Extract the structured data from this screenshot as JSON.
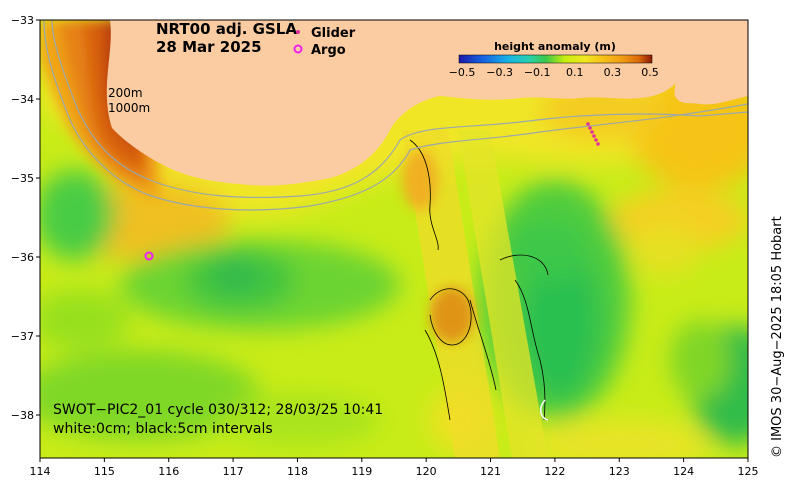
{
  "title_line1": "NRT00 adj. GSLA",
  "title_line2": "28 Mar 2025",
  "legend": {
    "glider": "Glider",
    "argo": "Argo"
  },
  "colorbar": {
    "title": "height anomaly (m)",
    "ticks": [
      "−0.5",
      "−0.3",
      "−0.1",
      "0.1",
      "0.3",
      "0.5"
    ],
    "colors": [
      "#1a1aa8",
      "#1560e0",
      "#18b0e8",
      "#26d0b0",
      "#3cc84a",
      "#7ad824",
      "#c8ee10",
      "#f0e820",
      "#f8c018",
      "#ee9a14",
      "#dc6a0c",
      "#b83c08",
      "#8c1a04"
    ]
  },
  "isobaths": {
    "label_200": "200m",
    "label_1000": "1000m"
  },
  "swot_caption": {
    "line1": "SWOT−PIC2_01 cycle 030/312; 28/03/25 10:41",
    "line2": "white:0cm; black:5cm intervals"
  },
  "copyright": "© IMOS 30−Aug−2025 18:05 Hobart",
  "x_ticks": [
    "114",
    "115",
    "116",
    "117",
    "118",
    "119",
    "120",
    "121",
    "122",
    "123",
    "124",
    "125"
  ],
  "y_ticks": [
    "−33",
    "−34",
    "−35",
    "−36",
    "−37",
    "−38"
  ],
  "map_colors": {
    "land": "#fbcba2",
    "glider": "#e0309a",
    "argo": "#ee22ee"
  }
}
